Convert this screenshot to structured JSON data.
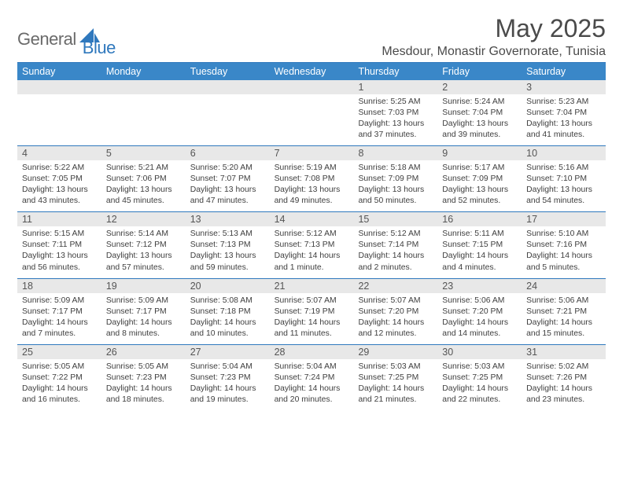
{
  "brand": {
    "part1": "General",
    "part2": "Blue"
  },
  "title": "May 2025",
  "location": "Mesdour, Monastir Governorate, Tunisia",
  "colors": {
    "accent": "#3a87c8",
    "rule": "#2f78bd",
    "daynum_bg": "#e8e8e8",
    "text": "#333333",
    "title_text": "#4a4a4a"
  },
  "weekdays": [
    "Sunday",
    "Monday",
    "Tuesday",
    "Wednesday",
    "Thursday",
    "Friday",
    "Saturday"
  ],
  "weeks": [
    [
      null,
      null,
      null,
      null,
      {
        "n": "1",
        "sunrise": "5:25 AM",
        "sunset": "7:03 PM",
        "daylight": "13 hours and 37 minutes."
      },
      {
        "n": "2",
        "sunrise": "5:24 AM",
        "sunset": "7:04 PM",
        "daylight": "13 hours and 39 minutes."
      },
      {
        "n": "3",
        "sunrise": "5:23 AM",
        "sunset": "7:04 PM",
        "daylight": "13 hours and 41 minutes."
      }
    ],
    [
      {
        "n": "4",
        "sunrise": "5:22 AM",
        "sunset": "7:05 PM",
        "daylight": "13 hours and 43 minutes."
      },
      {
        "n": "5",
        "sunrise": "5:21 AM",
        "sunset": "7:06 PM",
        "daylight": "13 hours and 45 minutes."
      },
      {
        "n": "6",
        "sunrise": "5:20 AM",
        "sunset": "7:07 PM",
        "daylight": "13 hours and 47 minutes."
      },
      {
        "n": "7",
        "sunrise": "5:19 AM",
        "sunset": "7:08 PM",
        "daylight": "13 hours and 49 minutes."
      },
      {
        "n": "8",
        "sunrise": "5:18 AM",
        "sunset": "7:09 PM",
        "daylight": "13 hours and 50 minutes."
      },
      {
        "n": "9",
        "sunrise": "5:17 AM",
        "sunset": "7:09 PM",
        "daylight": "13 hours and 52 minutes."
      },
      {
        "n": "10",
        "sunrise": "5:16 AM",
        "sunset": "7:10 PM",
        "daylight": "13 hours and 54 minutes."
      }
    ],
    [
      {
        "n": "11",
        "sunrise": "5:15 AM",
        "sunset": "7:11 PM",
        "daylight": "13 hours and 56 minutes."
      },
      {
        "n": "12",
        "sunrise": "5:14 AM",
        "sunset": "7:12 PM",
        "daylight": "13 hours and 57 minutes."
      },
      {
        "n": "13",
        "sunrise": "5:13 AM",
        "sunset": "7:13 PM",
        "daylight": "13 hours and 59 minutes."
      },
      {
        "n": "14",
        "sunrise": "5:12 AM",
        "sunset": "7:13 PM",
        "daylight": "14 hours and 1 minute."
      },
      {
        "n": "15",
        "sunrise": "5:12 AM",
        "sunset": "7:14 PM",
        "daylight": "14 hours and 2 minutes."
      },
      {
        "n": "16",
        "sunrise": "5:11 AM",
        "sunset": "7:15 PM",
        "daylight": "14 hours and 4 minutes."
      },
      {
        "n": "17",
        "sunrise": "5:10 AM",
        "sunset": "7:16 PM",
        "daylight": "14 hours and 5 minutes."
      }
    ],
    [
      {
        "n": "18",
        "sunrise": "5:09 AM",
        "sunset": "7:17 PM",
        "daylight": "14 hours and 7 minutes."
      },
      {
        "n": "19",
        "sunrise": "5:09 AM",
        "sunset": "7:17 PM",
        "daylight": "14 hours and 8 minutes."
      },
      {
        "n": "20",
        "sunrise": "5:08 AM",
        "sunset": "7:18 PM",
        "daylight": "14 hours and 10 minutes."
      },
      {
        "n": "21",
        "sunrise": "5:07 AM",
        "sunset": "7:19 PM",
        "daylight": "14 hours and 11 minutes."
      },
      {
        "n": "22",
        "sunrise": "5:07 AM",
        "sunset": "7:20 PM",
        "daylight": "14 hours and 12 minutes."
      },
      {
        "n": "23",
        "sunrise": "5:06 AM",
        "sunset": "7:20 PM",
        "daylight": "14 hours and 14 minutes."
      },
      {
        "n": "24",
        "sunrise": "5:06 AM",
        "sunset": "7:21 PM",
        "daylight": "14 hours and 15 minutes."
      }
    ],
    [
      {
        "n": "25",
        "sunrise": "5:05 AM",
        "sunset": "7:22 PM",
        "daylight": "14 hours and 16 minutes."
      },
      {
        "n": "26",
        "sunrise": "5:05 AM",
        "sunset": "7:23 PM",
        "daylight": "14 hours and 18 minutes."
      },
      {
        "n": "27",
        "sunrise": "5:04 AM",
        "sunset": "7:23 PM",
        "daylight": "14 hours and 19 minutes."
      },
      {
        "n": "28",
        "sunrise": "5:04 AM",
        "sunset": "7:24 PM",
        "daylight": "14 hours and 20 minutes."
      },
      {
        "n": "29",
        "sunrise": "5:03 AM",
        "sunset": "7:25 PM",
        "daylight": "14 hours and 21 minutes."
      },
      {
        "n": "30",
        "sunrise": "5:03 AM",
        "sunset": "7:25 PM",
        "daylight": "14 hours and 22 minutes."
      },
      {
        "n": "31",
        "sunrise": "5:02 AM",
        "sunset": "7:26 PM",
        "daylight": "14 hours and 23 minutes."
      }
    ]
  ],
  "labels": {
    "sunrise": "Sunrise: ",
    "sunset": "Sunset: ",
    "daylight": "Daylight: "
  }
}
